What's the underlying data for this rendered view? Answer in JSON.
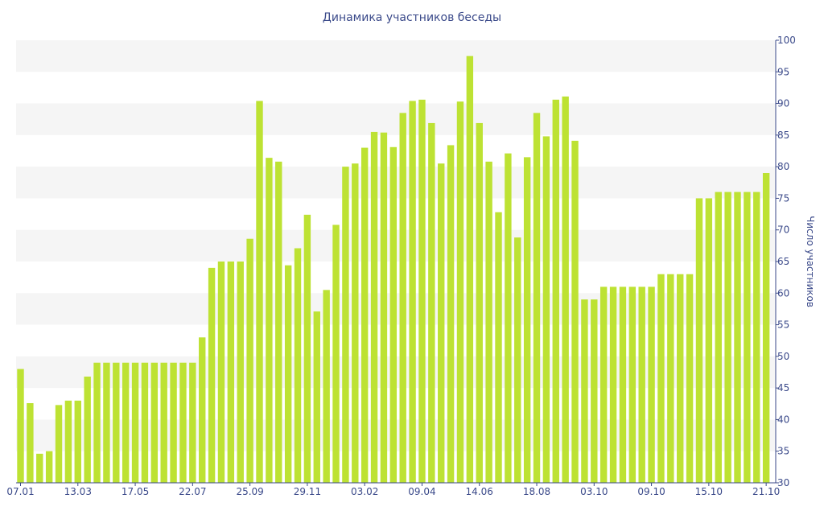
{
  "chart_data": {
    "type": "bar",
    "title": "Динамика участников беседы",
    "xlabel": "",
    "ylabel": "Число участников",
    "ylim": [
      30,
      100
    ],
    "y_ticks": [
      30,
      35,
      40,
      45,
      50,
      55,
      60,
      65,
      70,
      75,
      80,
      85,
      90,
      95,
      100
    ],
    "y_axis_side": "right",
    "grid": "horizontal bands",
    "legend": "none",
    "bar_color": "#bde233",
    "band_color": "#f5f5f5",
    "text_color": "#3b4a8a",
    "x_tick_labels": [
      {
        "index": 0,
        "label": "07.01"
      },
      {
        "index": 6,
        "label": "13.03"
      },
      {
        "index": 12,
        "label": "17.05"
      },
      {
        "index": 18,
        "label": "22.07"
      },
      {
        "index": 24,
        "label": "25.09"
      },
      {
        "index": 30,
        "label": "29.11"
      },
      {
        "index": 36,
        "label": "03.02"
      },
      {
        "index": 42,
        "label": "09.04"
      },
      {
        "index": 48,
        "label": "14.06"
      },
      {
        "index": 54,
        "label": "18.08"
      },
      {
        "index": 60,
        "label": "03.10"
      },
      {
        "index": 66,
        "label": "09.10"
      },
      {
        "index": 72,
        "label": "15.10"
      },
      {
        "index": 78,
        "label": "21.10"
      }
    ],
    "values": [
      48,
      42.6,
      34.6,
      35,
      42.3,
      43,
      43,
      46.8,
      49,
      49,
      49,
      49,
      49,
      49,
      49,
      49,
      49,
      49,
      49,
      53,
      64,
      65,
      65,
      65,
      68.6,
      90.4,
      81.4,
      80.8,
      64.4,
      67.1,
      72.4,
      57.1,
      60.5,
      70.8,
      80,
      80.5,
      83,
      85.5,
      85.4,
      83.1,
      88.5,
      90.4,
      90.6,
      86.9,
      80.5,
      83.4,
      90.3,
      97.5,
      86.9,
      80.8,
      72.8,
      82.1,
      68.8,
      81.5,
      88.5,
      84.8,
      90.6,
      91.1,
      84.1,
      59,
      59,
      61,
      61,
      61,
      61,
      61,
      61,
      63,
      63,
      63,
      63,
      75,
      75,
      76,
      76,
      76,
      76,
      76,
      79
    ]
  }
}
